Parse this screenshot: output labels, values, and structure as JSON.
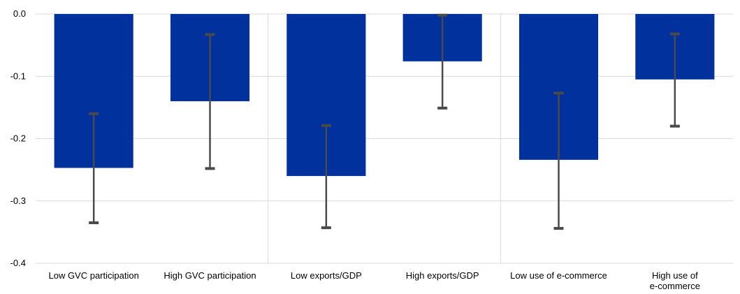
{
  "chart_data": {
    "type": "bar",
    "title": "",
    "xlabel": "",
    "ylabel": "",
    "ylim": [
      -0.4,
      0.0
    ],
    "yticks": [
      "0.0",
      "-0.1",
      "-0.2",
      "-0.3",
      "-0.4"
    ],
    "ytick_values": [
      0.0,
      -0.1,
      -0.2,
      -0.3,
      -0.4
    ],
    "categories": [
      [
        "Low GVC participation"
      ],
      [
        "High GVC participation"
      ],
      [
        "Low exports/GDP"
      ],
      [
        "High exports/GDP"
      ],
      [
        "Low use of e-commerce"
      ],
      [
        "High use of",
        "e-commerce"
      ]
    ],
    "values": [
      -0.247,
      -0.14,
      -0.26,
      -0.076,
      -0.234,
      -0.105
    ],
    "error_low": [
      -0.335,
      -0.248,
      -0.343,
      -0.151,
      -0.344,
      -0.18
    ],
    "error_high": [
      -0.16,
      -0.033,
      -0.179,
      -0.002,
      -0.127,
      -0.032
    ],
    "group_separators_after": [
      1,
      3
    ],
    "grid": true,
    "colors": {
      "bar": "#00319c",
      "error_bar": "#4a4a4a",
      "grid": "#d9d9d9"
    }
  }
}
